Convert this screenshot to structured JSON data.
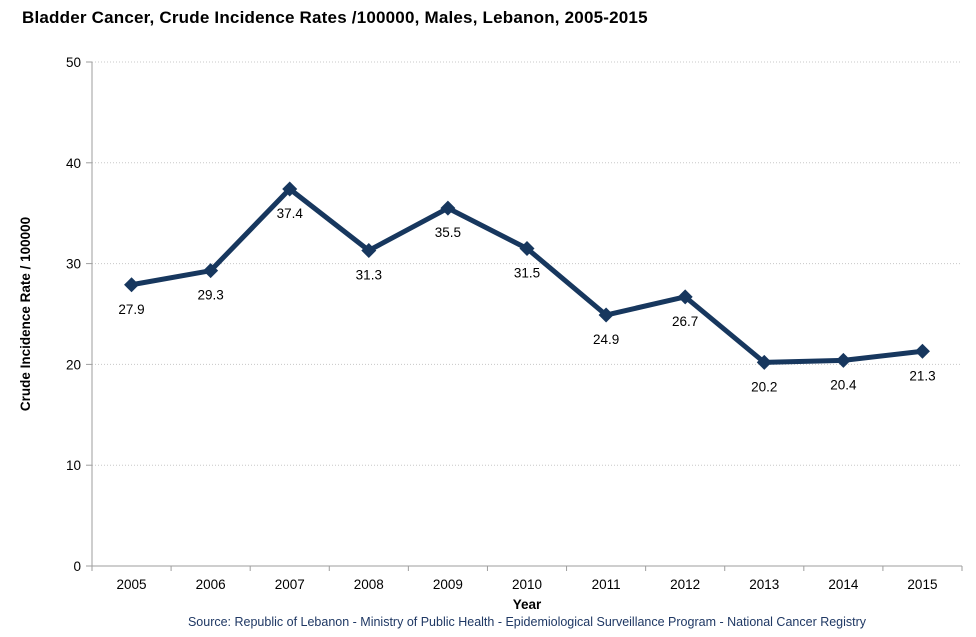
{
  "chart_data": {
    "type": "line",
    "title": "Bladder Cancer, Crude Incidence Rates /100000, Males, Lebanon, 2005-2015",
    "categories": [
      "2005",
      "2006",
      "2007",
      "2008",
      "2009",
      "2010",
      "2011",
      "2012",
      "2013",
      "2014",
      "2015"
    ],
    "series": [
      {
        "name": "Crude Incidence Rate /100000",
        "values": [
          27.9,
          29.3,
          37.4,
          31.3,
          35.5,
          31.5,
          24.9,
          26.7,
          20.2,
          20.4,
          21.3
        ]
      }
    ],
    "xlabel": "Year",
    "ylabel": "Crude Incidence Rate / 100000",
    "ylim": [
      0,
      50
    ],
    "ytick_step": 10,
    "grid": "horizontal dotted",
    "legend": "none",
    "data_labels": "below points, one decimal",
    "marker": "diamond",
    "colors": {
      "line": "#17375E",
      "marker": "#17375E",
      "data_label": "#000000",
      "axis": "#9E9E9E",
      "gridline": "#C8C8C8",
      "tick_label": "#000000",
      "source_text": "#1F3864"
    }
  },
  "footer": {
    "source": "Source: Republic of Lebanon - Ministry of Public Health - Epidemiological Surveillance Program - National Cancer Registry"
  }
}
